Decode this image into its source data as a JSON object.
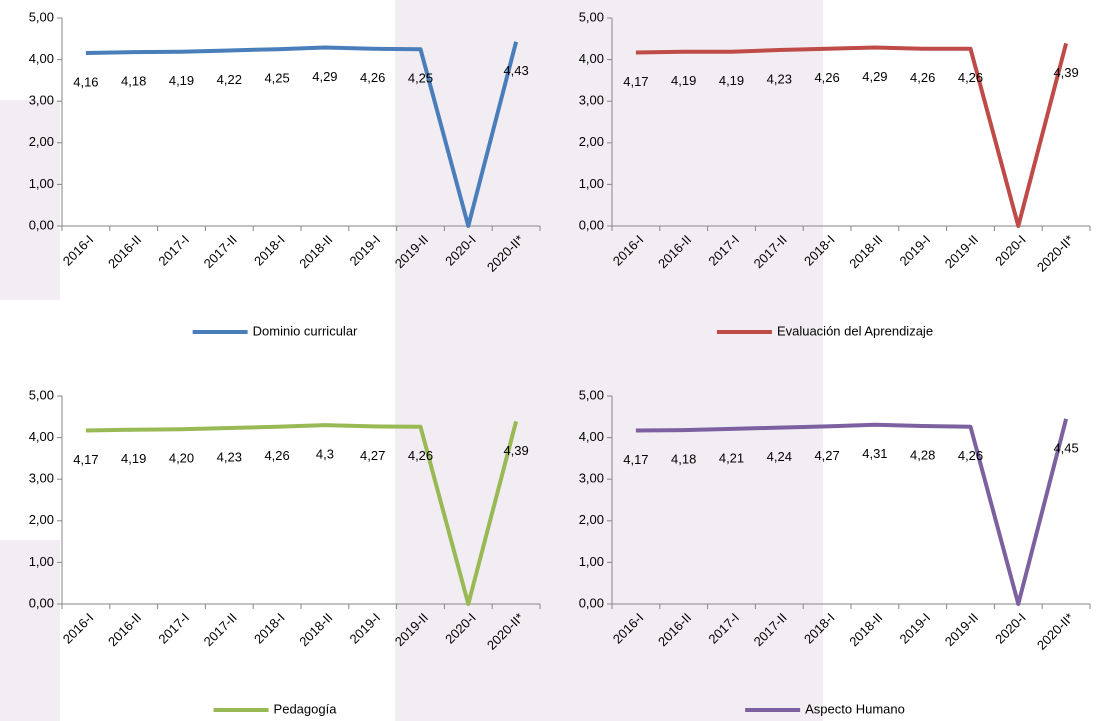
{
  "chart_data": [
    {
      "type": "line",
      "categories": [
        "2016-I",
        "2016-II",
        "2017-I",
        "2017-II",
        "2018-I",
        "2018-II",
        "2019-I",
        "2019-II",
        "2020-I",
        "2020-II*"
      ],
      "series": [
        {
          "name": "Dominio curricular",
          "color": "#4a7ebb",
          "values": [
            4.16,
            4.18,
            4.19,
            4.22,
            4.25,
            4.29,
            4.26,
            4.25,
            0,
            4.43
          ],
          "value_labels": [
            "4,16",
            "4,18",
            "4,19",
            "4,22",
            "4,25",
            "4,29",
            "4,26",
            "4,25",
            null,
            "4,43"
          ]
        }
      ],
      "ylim": [
        0,
        5
      ],
      "yticks": [
        {
          "value": 0,
          "label": "0,00"
        },
        {
          "value": 1,
          "label": "1,00"
        },
        {
          "value": 2,
          "label": "2,00"
        },
        {
          "value": 3,
          "label": "3,00"
        },
        {
          "value": 4,
          "label": "4,00"
        },
        {
          "value": 5,
          "label": "5,00"
        }
      ]
    },
    {
      "type": "line",
      "categories": [
        "2016-I",
        "2016-II",
        "2017-I",
        "2017-II",
        "2018-I",
        "2018-II",
        "2019-I",
        "2019-II",
        "2020-I",
        "2020-II*"
      ],
      "series": [
        {
          "name": "Evaluación del Aprendizaje",
          "color": "#be4b48",
          "values": [
            4.17,
            4.19,
            4.19,
            4.23,
            4.26,
            4.29,
            4.26,
            4.26,
            0,
            4.39
          ],
          "value_labels": [
            "4,17",
            "4,19",
            "4,19",
            "4,23",
            "4,26",
            "4,29",
            "4,26",
            "4,26",
            null,
            "4,39"
          ]
        }
      ],
      "ylim": [
        0,
        5
      ],
      "yticks": [
        {
          "value": 0,
          "label": "0,00"
        },
        {
          "value": 1,
          "label": "1,00"
        },
        {
          "value": 2,
          "label": "2,00"
        },
        {
          "value": 3,
          "label": "3,00"
        },
        {
          "value": 4,
          "label": "4,00"
        },
        {
          "value": 5,
          "label": "5,00"
        }
      ]
    },
    {
      "type": "line",
      "categories": [
        "2016-I",
        "2016-II",
        "2017-I",
        "2017-II",
        "2018-I",
        "2018-II",
        "2019-I",
        "2019-II",
        "2020-I",
        "2020-II*"
      ],
      "series": [
        {
          "name": "Pedagogía",
          "color": "#98b954",
          "values": [
            4.17,
            4.19,
            4.2,
            4.23,
            4.26,
            4.3,
            4.27,
            4.26,
            0,
            4.39
          ],
          "value_labels": [
            "4,17",
            "4,19",
            "4,20",
            "4,23",
            "4,26",
            "4,3",
            "4,27",
            "4,26",
            null,
            "4,39"
          ]
        }
      ],
      "ylim": [
        0,
        5
      ],
      "yticks": [
        {
          "value": 0,
          "label": "0,00"
        },
        {
          "value": 1,
          "label": "1,00"
        },
        {
          "value": 2,
          "label": "2,00"
        },
        {
          "value": 3,
          "label": "3,00"
        },
        {
          "value": 4,
          "label": "4,00"
        },
        {
          "value": 5,
          "label": "5,00"
        }
      ]
    },
    {
      "type": "line",
      "categories": [
        "2016-I",
        "2016-II",
        "2017-I",
        "2017-II",
        "2018-I",
        "2018-II",
        "2019-I",
        "2019-II",
        "2020-I",
        "2020-II*"
      ],
      "series": [
        {
          "name": "Aspecto Humano",
          "color": "#7d60a0",
          "values": [
            4.17,
            4.18,
            4.21,
            4.24,
            4.27,
            4.31,
            4.28,
            4.26,
            0,
            4.45
          ],
          "value_labels": [
            "4,17",
            "4,18",
            "4,21",
            "4,24",
            "4,27",
            "4,31",
            "4,28",
            "4,26",
            null,
            "4,45"
          ]
        }
      ],
      "ylim": [
        0,
        5
      ],
      "yticks": [
        {
          "value": 0,
          "label": "0,00"
        },
        {
          "value": 1,
          "label": "1,00"
        },
        {
          "value": 2,
          "label": "2,00"
        },
        {
          "value": 3,
          "label": "3,00"
        },
        {
          "value": 4,
          "label": "4,00"
        },
        {
          "value": 5,
          "label": "5,00"
        }
      ]
    }
  ]
}
